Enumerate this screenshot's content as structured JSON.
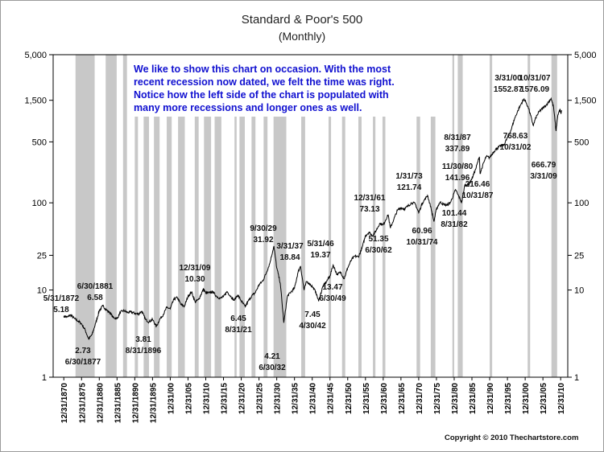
{
  "title": "Standard & Poor's 500",
  "subtitle": "(Monthly)",
  "note": "We like to show this chart on occasion.  With the most recent recession now dated, we felt the time was right.  Notice how the left side of the chart is populated with many more recessions and longer ones as well.",
  "copyright": "Copyright © 2010 Thechartstore.com",
  "colors": {
    "line": "#000000",
    "recession": "#c8c8c8",
    "note": "#1010d0",
    "axis": "#000000"
  },
  "chart_data": {
    "type": "line",
    "title": "Standard & Poor's 500",
    "subtitle": "(Monthly)",
    "xlabel": "",
    "ylabel": "",
    "yscale": "log",
    "xlim": [
      1867.5,
      2012.5
    ],
    "ylim": [
      1,
      5000
    ],
    "y_ticks": [
      1,
      10,
      25,
      100,
      500,
      1500,
      5000
    ],
    "y_tick_labels": [
      "1",
      "10",
      "25",
      "100",
      "500",
      "1,500",
      "5,000"
    ],
    "x_tick_labels": [
      "12/31/1870",
      "12/31/1875",
      "12/31/1880",
      "12/31/1885",
      "12/31/1890",
      "12/31/1895",
      "12/31/00",
      "12/31/05",
      "12/31/10",
      "12/31/15",
      "12/31/20",
      "12/31/25",
      "12/31/30",
      "12/31/35",
      "12/31/40",
      "12/31/45",
      "12/31/50",
      "12/31/55",
      "12/31/60",
      "12/31/65",
      "12/31/70",
      "12/31/75",
      "12/31/80",
      "12/31/85",
      "12/31/90",
      "12/31/95",
      "12/31/00",
      "12/31/05",
      "12/31/10"
    ],
    "recessions": [
      [
        1873.8,
        1879.2
      ],
      [
        1882.3,
        1885.4
      ],
      [
        1887.2,
        1888.3
      ],
      [
        1890.5,
        1891.4
      ],
      [
        1893.0,
        1894.5
      ],
      [
        1895.9,
        1897.5
      ],
      [
        1899.5,
        1900.9
      ],
      [
        1902.7,
        1904.6
      ],
      [
        1907.4,
        1908.5
      ],
      [
        1910.0,
        1912.0
      ],
      [
        1913.0,
        1914.9
      ],
      [
        1918.6,
        1919.2
      ],
      [
        1920.0,
        1921.5
      ],
      [
        1923.4,
        1924.5
      ],
      [
        1926.8,
        1927.9
      ],
      [
        1929.6,
        1933.2
      ],
      [
        1937.4,
        1938.5
      ],
      [
        1945.1,
        1945.8
      ],
      [
        1948.9,
        1949.8
      ],
      [
        1953.5,
        1954.4
      ],
      [
        1957.6,
        1958.3
      ],
      [
        1960.3,
        1961.1
      ],
      [
        1969.9,
        1970.9
      ],
      [
        1973.9,
        1975.2
      ],
      [
        1980.0,
        1980.5
      ],
      [
        1981.5,
        1982.9
      ],
      [
        1990.5,
        1991.2
      ],
      [
        2001.2,
        2001.9
      ],
      [
        2007.9,
        2009.5
      ]
    ],
    "series": [
      {
        "name": "S&P 500",
        "points": [
          [
            1870.5,
            5.0
          ],
          [
            1871.5,
            4.9
          ],
          [
            1872.4,
            5.18
          ],
          [
            1873.5,
            4.7
          ],
          [
            1874.5,
            4.4
          ],
          [
            1875.5,
            4.1
          ],
          [
            1876.5,
            3.5
          ],
          [
            1877.5,
            2.73
          ],
          [
            1878.5,
            3.1
          ],
          [
            1879.5,
            4.2
          ],
          [
            1880.5,
            5.8
          ],
          [
            1881.5,
            6.58
          ],
          [
            1882.5,
            5.9
          ],
          [
            1883.5,
            5.5
          ],
          [
            1884.5,
            4.8
          ],
          [
            1885.5,
            4.7
          ],
          [
            1886.5,
            5.6
          ],
          [
            1887.5,
            5.8
          ],
          [
            1888.5,
            5.5
          ],
          [
            1889.5,
            5.6
          ],
          [
            1890.5,
            5.4
          ],
          [
            1891.5,
            5.3
          ],
          [
            1892.5,
            5.7
          ],
          [
            1893.5,
            4.6
          ],
          [
            1894.5,
            4.3
          ],
          [
            1895.5,
            4.6
          ],
          [
            1896.6,
            3.81
          ],
          [
            1897.5,
            4.6
          ],
          [
            1898.5,
            5.2
          ],
          [
            1899.5,
            6.3
          ],
          [
            1900.5,
            6.1
          ],
          [
            1901.5,
            7.8
          ],
          [
            1902.5,
            8.2
          ],
          [
            1903.5,
            6.8
          ],
          [
            1904.5,
            6.5
          ],
          [
            1905.5,
            8.5
          ],
          [
            1906.5,
            9.5
          ],
          [
            1907.5,
            7.3
          ],
          [
            1908.5,
            7.8
          ],
          [
            1909.9,
            10.3
          ],
          [
            1910.5,
            9.2
          ],
          [
            1911.5,
            9.3
          ],
          [
            1912.5,
            9.5
          ],
          [
            1913.5,
            8.5
          ],
          [
            1914.5,
            8.0
          ],
          [
            1915.5,
            8.4
          ],
          [
            1916.5,
            9.6
          ],
          [
            1917.5,
            8.5
          ],
          [
            1918.5,
            7.6
          ],
          [
            1919.5,
            8.8
          ],
          [
            1920.5,
            7.5
          ],
          [
            1921.6,
            6.45
          ],
          [
            1922.5,
            7.5
          ],
          [
            1923.5,
            8.6
          ],
          [
            1924.5,
            9.4
          ],
          [
            1925.5,
            11.5
          ],
          [
            1926.5,
            12.6
          ],
          [
            1927.5,
            15.5
          ],
          [
            1928.5,
            20.0
          ],
          [
            1929.7,
            31.92
          ],
          [
            1930.5,
            18.0
          ],
          [
            1931.5,
            12.0
          ],
          [
            1932.5,
            4.21
          ],
          [
            1933.5,
            8.5
          ],
          [
            1934.5,
            9.5
          ],
          [
            1935.5,
            10.5
          ],
          [
            1936.5,
            16.0
          ],
          [
            1937.2,
            18.84
          ],
          [
            1938.2,
            10.0
          ],
          [
            1938.9,
            12.5
          ],
          [
            1939.5,
            12.0
          ],
          [
            1940.5,
            11.0
          ],
          [
            1941.5,
            9.5
          ],
          [
            1942.3,
            7.45
          ],
          [
            1943.5,
            11.0
          ],
          [
            1944.5,
            12.5
          ],
          [
            1945.5,
            14.5
          ],
          [
            1946.4,
            19.37
          ],
          [
            1947.5,
            15.0
          ],
          [
            1948.5,
            16.0
          ],
          [
            1949.5,
            13.47
          ],
          [
            1950.5,
            18.0
          ],
          [
            1951.5,
            22.0
          ],
          [
            1952.5,
            24.5
          ],
          [
            1953.5,
            24.0
          ],
          [
            1954.5,
            30.0
          ],
          [
            1955.5,
            42.0
          ],
          [
            1956.5,
            46.0
          ],
          [
            1957.5,
            42.0
          ],
          [
            1958.5,
            48.0
          ],
          [
            1959.5,
            58.0
          ],
          [
            1960.5,
            56.0
          ],
          [
            1961.9,
            73.13
          ],
          [
            1962.5,
            51.35
          ],
          [
            1963.5,
            65.0
          ],
          [
            1964.5,
            82.0
          ],
          [
            1965.5,
            88.0
          ],
          [
            1966.5,
            85.0
          ],
          [
            1967.5,
            92.0
          ],
          [
            1968.5,
            100.0
          ],
          [
            1969.5,
            98.0
          ],
          [
            1970.5,
            77.0
          ],
          [
            1971.5,
            99.0
          ],
          [
            1973.0,
            121.74
          ],
          [
            1974.0,
            86.0
          ],
          [
            1974.8,
            60.96
          ],
          [
            1975.5,
            85.0
          ],
          [
            1976.5,
            102.0
          ],
          [
            1977.5,
            96.0
          ],
          [
            1978.5,
            94.0
          ],
          [
            1979.5,
            102.0
          ],
          [
            1980.9,
            141.96
          ],
          [
            1981.5,
            125.0
          ],
          [
            1982.6,
            101.44
          ],
          [
            1983.5,
            160.0
          ],
          [
            1984.5,
            160.0
          ],
          [
            1985.5,
            190.0
          ],
          [
            1986.5,
            240.0
          ],
          [
            1987.6,
            337.89
          ],
          [
            1987.8,
            216.46
          ],
          [
            1988.5,
            265.0
          ],
          [
            1989.5,
            340.0
          ],
          [
            1990.5,
            330.0
          ],
          [
            1991.5,
            380.0
          ],
          [
            1992.5,
            420.0
          ],
          [
            1993.5,
            450.0
          ],
          [
            1994.5,
            460.0
          ],
          [
            1995.5,
            560.0
          ],
          [
            1996.5,
            680.0
          ],
          [
            1997.5,
            920.0
          ],
          [
            1998.5,
            1150.0
          ],
          [
            1999.5,
            1400.0
          ],
          [
            2000.2,
            1552.87
          ],
          [
            2000.8,
            1400.0
          ],
          [
            2001.5,
            1200.0
          ],
          [
            2002.8,
            768.63
          ],
          [
            2003.5,
            950.0
          ],
          [
            2004.5,
            1120.0
          ],
          [
            2005.5,
            1220.0
          ],
          [
            2006.5,
            1330.0
          ],
          [
            2007.8,
            1576.09
          ],
          [
            2008.5,
            1250.0
          ],
          [
            2009.2,
            666.79
          ],
          [
            2009.7,
            1020.0
          ],
          [
            2010.3,
            1180.0
          ],
          [
            2010.6,
            1050.0
          ],
          [
            2010.8,
            1150.0
          ]
        ]
      }
    ],
    "annotations": [
      {
        "lines": [
          "5/31/1872",
          "5.18"
        ]
      },
      {
        "lines": [
          "6/30/1881",
          "6.58"
        ]
      },
      {
        "lines": [
          "2.73",
          "6/30/1877"
        ]
      },
      {
        "lines": [
          "3.81",
          "8/31/1896"
        ]
      },
      {
        "lines": [
          "12/31/09",
          "10.30"
        ]
      },
      {
        "lines": [
          "6.45",
          "8/31/21"
        ]
      },
      {
        "lines": [
          "9/30/29",
          "31.92"
        ]
      },
      {
        "lines": [
          "4.21",
          "6/30/32"
        ]
      },
      {
        "lines": [
          "3/31/37",
          "18.84"
        ]
      },
      {
        "lines": [
          "7.45",
          "4/30/42"
        ]
      },
      {
        "lines": [
          "5/31/46",
          "19.37"
        ]
      },
      {
        "lines": [
          "13.47",
          "6/30/49"
        ]
      },
      {
        "lines": [
          "12/31/61",
          "73.13"
        ]
      },
      {
        "lines": [
          "51.35",
          "6/30/62"
        ]
      },
      {
        "lines": [
          "1/31/73",
          "121.74"
        ]
      },
      {
        "lines": [
          "60.96",
          "10/31/74"
        ]
      },
      {
        "lines": [
          "11/30/80",
          "141.96"
        ]
      },
      {
        "lines": [
          "101.44",
          "8/31/82"
        ]
      },
      {
        "lines": [
          "8/31/87",
          "337.89"
        ]
      },
      {
        "lines": [
          "216.46",
          "10/31/87"
        ]
      },
      {
        "lines": [
          "3/31/00",
          "1552.87"
        ]
      },
      {
        "lines": [
          "768.63",
          "10/31/02"
        ]
      },
      {
        "lines": [
          "10/31/07",
          "1576.09"
        ]
      },
      {
        "lines": [
          "666.79",
          "3/31/09"
        ]
      }
    ]
  }
}
